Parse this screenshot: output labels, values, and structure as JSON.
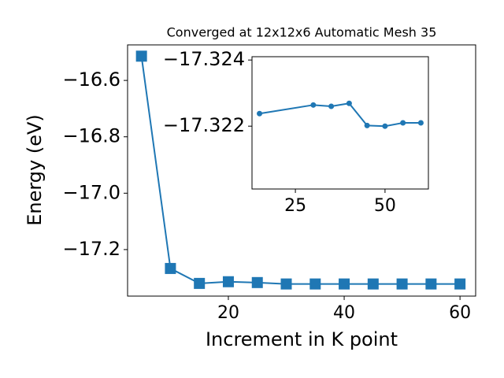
{
  "chart_data": [
    {
      "type": "line",
      "title": "Converged at 12x12x6 Automatic Mesh 35",
      "x_label": "Increment in K point",
      "y_label": "Energy (eV)",
      "x": [
        5,
        10,
        15,
        20,
        25,
        30,
        35,
        40,
        45,
        50,
        55,
        60
      ],
      "series": [
        {
          "color": "#1f77b4",
          "marker": "square",
          "values": [
            -16.514,
            -17.267,
            -17.32,
            -17.314,
            -17.317,
            -17.322,
            -17.322,
            -17.322,
            -17.322,
            -17.322,
            -17.322,
            -17.322
          ]
        }
      ],
      "xlim": [
        2.6,
        62.7
      ],
      "ylim": [
        -17.365,
        -16.474
      ],
      "xticks": [
        20,
        40,
        60
      ],
      "yticks": [
        {
          "value": -16.6,
          "label": "−16.6"
        },
        {
          "value": -16.8,
          "label": "−16.8"
        },
        {
          "value": -17.0,
          "label": "−17.0"
        },
        {
          "value": -17.2,
          "label": "−17.2"
        }
      ]
    },
    {
      "type": "line",
      "x": [
        15,
        30,
        35,
        40,
        45,
        50,
        55,
        60
      ],
      "series": [
        {
          "color": "#1f77b4",
          "marker": "circle",
          "values": [
            -17.32238,
            -17.32264,
            -17.3226,
            -17.32269,
            -17.32202,
            -17.322,
            -17.3221,
            -17.3221
          ]
        }
      ],
      "xlim": [
        12.9,
        62.1
      ],
      "ylim": [
        -17.3201,
        -17.3241
      ],
      "xticks": [
        25,
        50
      ],
      "yticks": [
        {
          "value": -17.324,
          "label": "−17.324"
        },
        {
          "value": -17.322,
          "label": "−17.322"
        }
      ]
    }
  ]
}
